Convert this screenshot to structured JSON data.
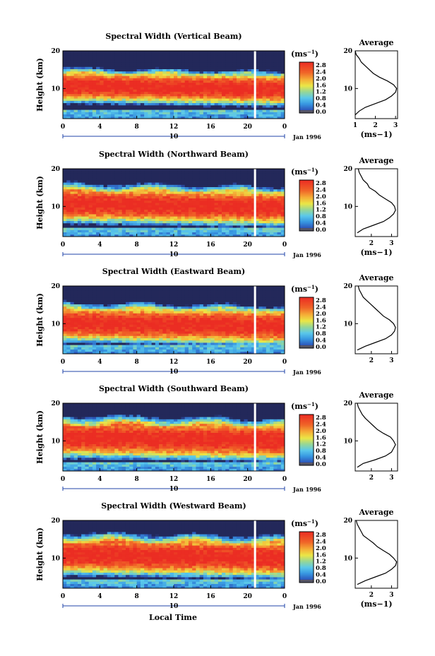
{
  "figure": {
    "xlabel_bottom": "Local Time",
    "colorbar_unit": "(ms",
    "colorbar_unit_exp": "−1",
    "average_title": "Average",
    "date_label": "Jan 1996",
    "day_label": "10",
    "colors": {
      "red": "#ee3323",
      "orange": "#f29a2e",
      "yellow": "#f4e43c",
      "lightgreen": "#a9d65a",
      "cyan": "#52c3e6",
      "blue": "#2d6cc0",
      "navy": "#223a7a",
      "grey": "#555566",
      "white_gap": "#ffffff"
    }
  },
  "chart_data": [
    {
      "type": "heatmap",
      "title": "Spectral Width (Vertical Beam)",
      "xlabel": "",
      "ylabel": "Height (km)",
      "x_ticks": [
        "0",
        "4",
        "8",
        "12",
        "16",
        "20",
        "0"
      ],
      "y_ticks": [
        "10",
        "20"
      ],
      "xlim": [
        0,
        24
      ],
      "ylim": [
        2,
        20
      ],
      "colorbar": {
        "ticks": [
          "2.8",
          "2.4",
          "2.0",
          "1.6",
          "1.2",
          "0.8",
          "0.4",
          "0.0"
        ],
        "range": [
          0,
          2.8
        ]
      },
      "data_gap_hour": 20.8,
      "red_core_km": [
        8.5,
        13.0
      ],
      "profile": {
        "title": "Average",
        "xlabel": "(ms−1)",
        "x_ticks": [
          "1",
          "2",
          "3"
        ],
        "xlim": [
          1,
          3.1
        ],
        "height_km": [
          3,
          4,
          5,
          6,
          7,
          8,
          9,
          10,
          11,
          12,
          13,
          14,
          15,
          16,
          17,
          18,
          19,
          20
        ],
        "values": [
          1.0,
          1.2,
          1.5,
          2.0,
          2.5,
          2.8,
          3.0,
          3.05,
          2.9,
          2.6,
          2.2,
          1.9,
          1.7,
          1.5,
          1.3,
          1.2,
          1.05,
          1.0
        ]
      }
    },
    {
      "type": "heatmap",
      "title": "Spectral Width (Northward Beam)",
      "xlabel": "",
      "ylabel": "Height (km)",
      "x_ticks": [
        "0",
        "4",
        "8",
        "12",
        "16",
        "20",
        "0"
      ],
      "y_ticks": [
        "10",
        "20"
      ],
      "xlim": [
        0,
        24
      ],
      "ylim": [
        2,
        20
      ],
      "colorbar": {
        "ticks": [
          "2.8",
          "2.4",
          "2.0",
          "1.6",
          "1.2",
          "0.8",
          "0.4",
          "0.0"
        ],
        "range": [
          0,
          2.8
        ]
      },
      "data_gap_hour": 20.8,
      "red_core_km": [
        8.0,
        13.5
      ],
      "profile": {
        "title": "Average",
        "xlabel": "(ms−1)",
        "x_ticks": [
          "2",
          "3"
        ],
        "xlim": [
          1.2,
          3.3
        ],
        "height_km": [
          3,
          4,
          5,
          6,
          7,
          8,
          9,
          10,
          11,
          12,
          13,
          14,
          15,
          16,
          17,
          18,
          19,
          20
        ],
        "values": [
          1.3,
          1.6,
          2.1,
          2.6,
          2.9,
          3.1,
          3.2,
          3.15,
          3.0,
          2.7,
          2.4,
          2.2,
          1.9,
          1.8,
          1.6,
          1.5,
          1.4,
          1.35
        ]
      }
    },
    {
      "type": "heatmap",
      "title": "Spectral Width (Eastward Beam)",
      "xlabel": "",
      "ylabel": "Height (km)",
      "x_ticks": [
        "0",
        "4",
        "8",
        "12",
        "16",
        "20",
        "0"
      ],
      "y_ticks": [
        "10",
        "20"
      ],
      "xlim": [
        0,
        24
      ],
      "ylim": [
        2,
        20
      ],
      "colorbar": {
        "ticks": [
          "2.8",
          "2.4",
          "2.0",
          "1.6",
          "1.2",
          "0.8",
          "0.4",
          "0.0"
        ],
        "range": [
          0,
          2.8
        ]
      },
      "data_gap_hour": 20.8,
      "red_core_km": [
        7.5,
        13.0
      ],
      "profile": {
        "title": "Average",
        "xlabel": "",
        "x_ticks": [
          "2",
          "3"
        ],
        "xlim": [
          1.2,
          3.3
        ],
        "height_km": [
          3,
          4,
          5,
          6,
          7,
          8,
          9,
          10,
          11,
          12,
          13,
          14,
          15,
          16,
          17,
          18,
          19,
          20
        ],
        "values": [
          1.3,
          1.7,
          2.2,
          2.7,
          3.0,
          3.15,
          3.2,
          3.1,
          2.9,
          2.6,
          2.4,
          2.2,
          2.0,
          1.8,
          1.6,
          1.5,
          1.4,
          1.35
        ]
      }
    },
    {
      "type": "heatmap",
      "title": "Spectral Width (Southward Beam)",
      "xlabel": "",
      "ylabel": "Height (km)",
      "x_ticks": [
        "0",
        "4",
        "8",
        "12",
        "16",
        "20",
        "0"
      ],
      "y_ticks": [
        "10",
        "20"
      ],
      "xlim": [
        0,
        24
      ],
      "ylim": [
        2,
        20
      ],
      "colorbar": {
        "ticks": [
          "2.8",
          "2.4",
          "2.0",
          "1.6",
          "1.2",
          "0.8",
          "0.4",
          "0.0"
        ],
        "range": [
          0,
          2.8
        ]
      },
      "data_gap_hour": 20.8,
      "red_core_km": [
        8.0,
        14.0
      ],
      "profile": {
        "title": "Average",
        "xlabel": "",
        "x_ticks": [
          "2",
          "3"
        ],
        "xlim": [
          1.2,
          3.3
        ],
        "height_km": [
          3,
          4,
          5,
          6,
          7,
          8,
          9,
          10,
          11,
          12,
          13,
          14,
          15,
          16,
          17,
          18,
          19,
          20
        ],
        "values": [
          1.3,
          1.6,
          2.2,
          2.7,
          3.0,
          3.1,
          3.2,
          3.1,
          2.95,
          2.6,
          2.3,
          2.1,
          1.9,
          1.7,
          1.55,
          1.45,
          1.35,
          1.3
        ]
      }
    },
    {
      "type": "heatmap",
      "title": "Spectral Width (Westward Beam)",
      "xlabel": "",
      "ylabel": "Height (km)",
      "x_ticks": [
        "0",
        "4",
        "8",
        "12",
        "16",
        "20",
        "0"
      ],
      "y_ticks": [
        "10",
        "20"
      ],
      "xlim": [
        0,
        24
      ],
      "ylim": [
        2,
        20
      ],
      "colorbar": {
        "ticks": [
          "2.8",
          "2.4",
          "2.0",
          "1.6",
          "1.2",
          "0.8",
          "0.4",
          "0.0"
        ],
        "range": [
          0,
          2.8
        ]
      },
      "data_gap_hour": 20.8,
      "red_core_km": [
        8.0,
        14.0
      ],
      "profile": {
        "title": "Average",
        "xlabel": "(ms−1)",
        "x_ticks": [
          "2",
          "3"
        ],
        "xlim": [
          1.2,
          3.3
        ],
        "height_km": [
          3,
          4,
          5,
          6,
          7,
          8,
          9,
          10,
          11,
          12,
          13,
          14,
          15,
          16,
          17,
          18,
          19,
          20
        ],
        "values": [
          1.3,
          1.7,
          2.2,
          2.7,
          3.0,
          3.2,
          3.25,
          3.1,
          2.9,
          2.6,
          2.3,
          2.1,
          1.85,
          1.6,
          1.5,
          1.4,
          1.3,
          1.25
        ]
      }
    }
  ]
}
